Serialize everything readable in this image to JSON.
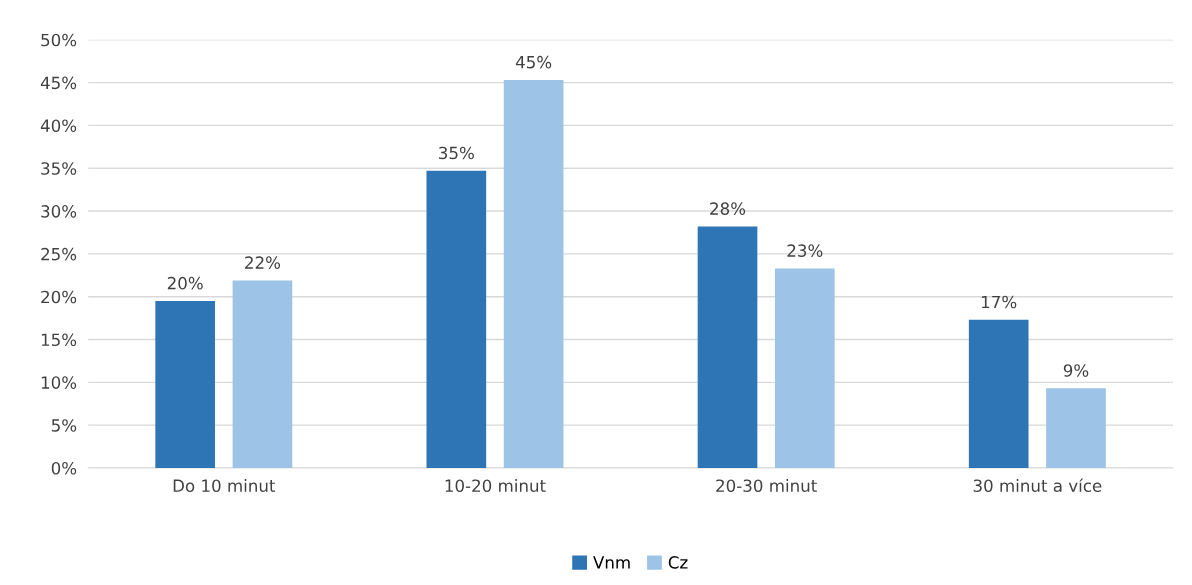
{
  "chart_data": {
    "type": "bar",
    "categories": [
      "Do 10 minut",
      "10-20 minut",
      "20-30 minut",
      "30 minut a více"
    ],
    "series": [
      {
        "name": "Vnm",
        "color": "#2e75b6",
        "values": [
          19.5,
          34.7,
          28.2,
          17.3
        ],
        "value_labels": [
          "20%",
          "35%",
          "28%",
          "17%"
        ]
      },
      {
        "name": "Cz",
        "color": "#9dc3e6",
        "values": [
          21.9,
          45.3,
          23.3,
          9.3
        ],
        "value_labels": [
          "22%",
          "45%",
          "23%",
          "9%"
        ]
      }
    ],
    "ylim": [
      0,
      50
    ],
    "yticks": [
      {
        "value": 0,
        "label": "0%"
      },
      {
        "value": 5,
        "label": "5%"
      },
      {
        "value": 10,
        "label": "10%"
      },
      {
        "value": 15,
        "label": "15%"
      },
      {
        "value": 20,
        "label": "20%"
      },
      {
        "value": 25,
        "label": "25%"
      },
      {
        "value": 30,
        "label": "30%"
      },
      {
        "value": 35,
        "label": "35%"
      },
      {
        "value": 40,
        "label": "40%"
      },
      {
        "value": 45,
        "label": "45%"
      },
      {
        "value": 50,
        "label": "50%"
      }
    ],
    "grid": "y",
    "legend": "bottom"
  }
}
